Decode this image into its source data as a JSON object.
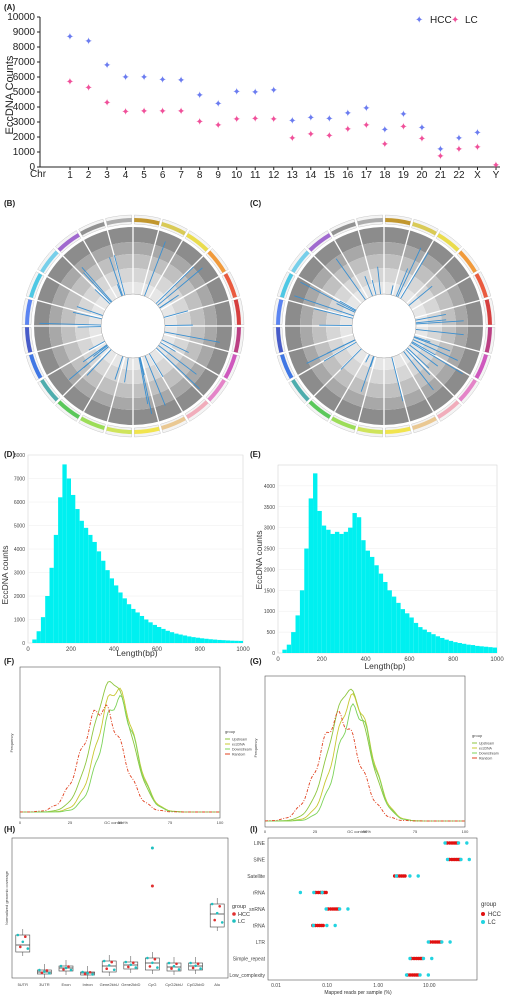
{
  "panels": [
    "(A)",
    "(B)",
    "(C)",
    "(D)",
    "(E)",
    "(F)",
    "(G)",
    "(H)",
    "(I)"
  ],
  "chart_data": [
    {
      "id": "A",
      "type": "scatter",
      "ylabel": "EccDNA Counts",
      "xlabel_prefix": "Chr",
      "categories": [
        "1",
        "2",
        "3",
        "4",
        "5",
        "6",
        "7",
        "8",
        "9",
        "10",
        "11",
        "12",
        "13",
        "14",
        "15",
        "16",
        "17",
        "18",
        "19",
        "20",
        "21",
        "22",
        "X",
        "Y"
      ],
      "ylim": [
        0,
        10000
      ],
      "yticks": [
        "0",
        "1000",
        "2000",
        "3000",
        "4000",
        "5000",
        "6000",
        "7000",
        "8000",
        "9000",
        "10000"
      ],
      "legend_position": "top-right",
      "series": [
        {
          "name": "HCC",
          "color": "#6b7cf0",
          "values": [
            8700,
            8400,
            6800,
            6000,
            6000,
            5850,
            5800,
            4800,
            4250,
            5050,
            5000,
            5150,
            3100,
            3300,
            3250,
            3600,
            3950,
            2500,
            3550,
            2650,
            1200,
            1950,
            2300,
            null
          ]
        },
        {
          "name": "LC",
          "color": "#f0509a",
          "values": [
            5700,
            5300,
            4300,
            3700,
            3750,
            3750,
            3750,
            3050,
            2800,
            3200,
            3250,
            3200,
            1950,
            2200,
            2100,
            2550,
            2800,
            1550,
            2700,
            1900,
            750,
            1200,
            1350,
            150
          ]
        }
      ]
    },
    {
      "id": "B",
      "type": "circos",
      "note": ""
    },
    {
      "id": "C",
      "type": "circos",
      "note": ""
    },
    {
      "id": "D",
      "type": "bar",
      "xlabel": "Length(bp)",
      "ylabel": "EccDNA  counts",
      "xlim": [
        0,
        1000
      ],
      "ylim": [
        0,
        8000
      ],
      "xticks": [
        "0",
        "200",
        "400",
        "600",
        "800",
        "1000"
      ],
      "yticks": [
        "0",
        "1000",
        "2000",
        "3000",
        "4000",
        "5000",
        "6000",
        "7000",
        "8000"
      ],
      "color": "#00f0f0",
      "bin_width": 20,
      "bin_starts": [
        20,
        40,
        60,
        80,
        100,
        120,
        140,
        160,
        180,
        200,
        220,
        240,
        260,
        280,
        300,
        320,
        340,
        360,
        380,
        400,
        420,
        440,
        460,
        480,
        500,
        520,
        540,
        560,
        580,
        600,
        620,
        640,
        660,
        680,
        700,
        720,
        740,
        760,
        780,
        800,
        820,
        840,
        860,
        880,
        900,
        920,
        940,
        960,
        980
      ],
      "values": [
        150,
        500,
        1100,
        2000,
        3200,
        4600,
        6200,
        7600,
        7000,
        6300,
        5700,
        5200,
        4900,
        4600,
        4300,
        3900,
        3500,
        3100,
        2750,
        2450,
        2150,
        1900,
        1650,
        1450,
        1300,
        1150,
        1000,
        880,
        770,
        680,
        600,
        520,
        460,
        400,
        360,
        320,
        280,
        250,
        225,
        200,
        180,
        160,
        145,
        130,
        120,
        110,
        100,
        95,
        90
      ]
    },
    {
      "id": "E",
      "type": "bar",
      "xlabel": "Length(bp)",
      "ylabel": "EccDNA counts",
      "xlim": [
        0,
        1000
      ],
      "ylim": [
        0,
        4500
      ],
      "xticks": [
        "0",
        "200",
        "400",
        "600",
        "800",
        "1000"
      ],
      "yticks": [
        "0",
        "500",
        "1000",
        "1500",
        "2000",
        "2500",
        "3000",
        "3500",
        "4000"
      ],
      "color": "#00f0f0",
      "bin_width": 20,
      "bin_starts": [
        20,
        40,
        60,
        80,
        100,
        120,
        140,
        160,
        180,
        200,
        220,
        240,
        260,
        280,
        300,
        320,
        340,
        360,
        380,
        400,
        420,
        440,
        460,
        480,
        500,
        520,
        540,
        560,
        580,
        600,
        620,
        640,
        660,
        680,
        700,
        720,
        740,
        760,
        780,
        800,
        820,
        840,
        860,
        880,
        900,
        920,
        940,
        960,
        980
      ],
      "values": [
        80,
        200,
        500,
        900,
        1500,
        2500,
        3700,
        4300,
        3400,
        3050,
        2950,
        2850,
        2900,
        2850,
        2900,
        3000,
        3350,
        3250,
        2700,
        2450,
        2300,
        2100,
        1900,
        1700,
        1500,
        1350,
        1200,
        1050,
        950,
        850,
        720,
        620,
        560,
        500,
        450,
        400,
        360,
        320,
        290,
        260,
        240,
        220,
        200,
        190,
        170,
        160,
        150,
        140,
        130
      ]
    },
    {
      "id": "F",
      "type": "line",
      "xlabel": "GC content%",
      "ylabel": "Frequency",
      "xlim": [
        0,
        100
      ],
      "xticks": [
        "0",
        "25",
        "50",
        "75",
        "100"
      ],
      "legend_title": "group",
      "legend_position": "right",
      "series": [
        {
          "name": "Upstream",
          "color": "#8ec63f"
        },
        {
          "name": "eccDNA",
          "color": "#c8c832"
        },
        {
          "name": "Downstream",
          "color": "#7dd35a"
        },
        {
          "name": "Random",
          "color": "#e0401e"
        }
      ]
    },
    {
      "id": "G",
      "type": "line",
      "xlabel": "GC content%",
      "ylabel": "Frequency",
      "xlim": [
        0,
        100
      ],
      "xticks": [
        "0",
        "25",
        "50",
        "75",
        "100"
      ],
      "legend_title": "group",
      "legend_position": "right",
      "series": [
        {
          "name": "Upstream",
          "color": "#8ec63f"
        },
        {
          "name": "eccDNA",
          "color": "#c8c832"
        },
        {
          "name": "Downstream",
          "color": "#7dd35a"
        },
        {
          "name": "Random",
          "color": "#e0401e"
        }
      ]
    },
    {
      "id": "H",
      "type": "box",
      "ylabel": "Normalized genomic coverage",
      "categories": [
        "5UTR",
        "3UTR",
        "Exon",
        "Intron",
        "Gene2kbU",
        "Gene2kbD",
        "CpG",
        "CpG2kbU",
        "CpG2kbD",
        "Alu"
      ],
      "legend_title": "group",
      "series": [
        {
          "name": "HCC",
          "color": "#e03030"
        },
        {
          "name": "LC",
          "color": "#1fbfbf"
        }
      ]
    },
    {
      "id": "I",
      "type": "dot",
      "xlabel": "Mapped reads per sample (%)",
      "x_scale": "log",
      "xticks": [
        "0.01",
        "0.10",
        "1.00",
        "10.00"
      ],
      "categories": [
        "LINE",
        "SINE",
        "Satellite",
        "rRNA",
        "snRNA",
        "tRNA",
        "LTR",
        "Simple_repeat",
        "Low_complexity"
      ],
      "legend_title": "group",
      "series": [
        {
          "name": "HCC",
          "color": "#e01010"
        },
        {
          "name": "LC",
          "color": "#22d3e0"
        }
      ]
    }
  ]
}
